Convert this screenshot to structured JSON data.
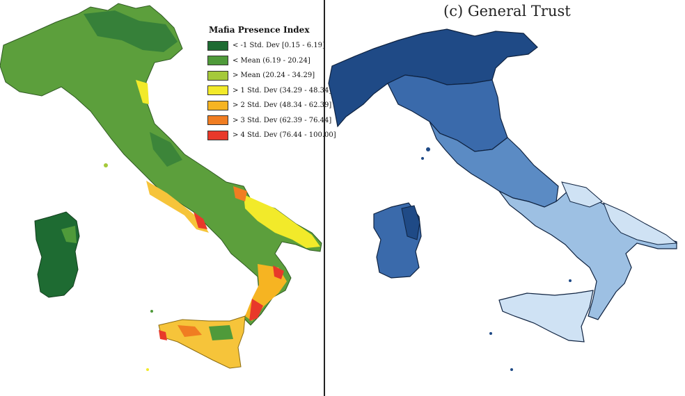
{
  "left_panel": {
    "legend_title": "Mafia Presence Index",
    "legend": [
      {
        "label": "< -1 Std. Dev [0.15 - 6.19]",
        "color": "#1e6b32"
      },
      {
        "label": "< Mean (6.19 - 20.24]",
        "color": "#4f9a3a"
      },
      {
        "label": "> Mean (20.24 - 34.29]",
        "color": "#a5c93a"
      },
      {
        "label": "> 1 Std. Dev (34.29 - 48.34]",
        "color": "#f2ea2a"
      },
      {
        "label": "> 2 Std. Dev (48.34 - 62.39]",
        "color": "#f6b422"
      },
      {
        "label": "> 3 Std. Dev (62.39 - 76.44]",
        "color": "#f07d22"
      },
      {
        "label": "> 4 Std. Dev (76.44 - 100.00]",
        "color": "#e8392a"
      }
    ]
  },
  "right_panel": {
    "title": "(c) General Trust",
    "colors": {
      "dark": "#1f4a86",
      "mid_dark": "#3a6aab",
      "mid": "#5b8bc4",
      "light": "#9dc0e3",
      "lightest": "#cfe2f4"
    }
  }
}
